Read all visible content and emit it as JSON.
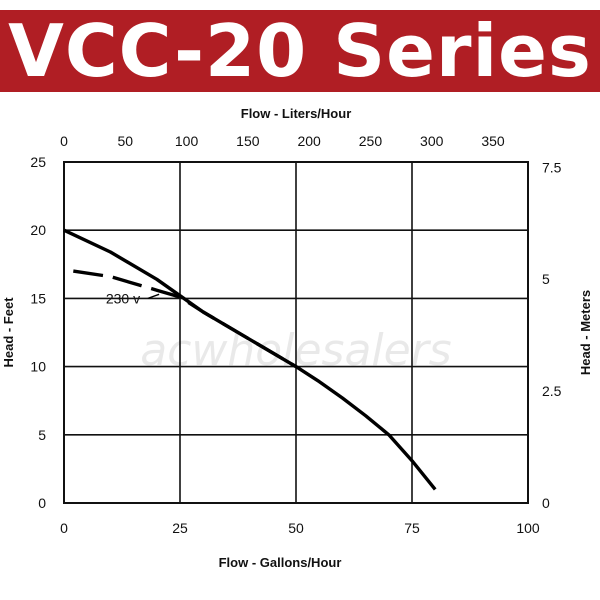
{
  "header": {
    "title": "VCC-20 Series"
  },
  "watermark": "acwholesalers",
  "chart_data": {
    "type": "line",
    "title": "",
    "xlabel": "Flow - Gallons/Hour",
    "ylabel": "Head - Feet",
    "x2label": "Flow - Liters/Hour",
    "y2label": "Head - Meters",
    "xlim": [
      0,
      100
    ],
    "ylim": [
      0,
      25
    ],
    "x2lim": [
      0,
      378.54
    ],
    "y2lim": [
      0,
      7.62
    ],
    "grid": true,
    "x_ticks": [
      "0",
      "25",
      "50",
      "75",
      "100"
    ],
    "y_ticks": [
      "0",
      "5",
      "10",
      "15",
      "20",
      "25"
    ],
    "x2_ticks": [
      "0",
      "50",
      "100",
      "150",
      "200",
      "250",
      "300",
      "350"
    ],
    "y2_ticks": [
      "0",
      "2.5",
      "5",
      "7.5"
    ],
    "series": [
      {
        "style": "solid",
        "x": [
          0,
          10,
          20,
          25,
          30,
          40,
          50,
          55,
          60,
          65,
          70,
          75,
          80
        ],
        "y": [
          20,
          18.4,
          16.4,
          15.2,
          14,
          12,
          10,
          8.9,
          7.7,
          6.4,
          5,
          3.1,
          1
        ]
      },
      {
        "name": "230 v",
        "style": "dashed",
        "x": [
          2,
          10,
          20,
          25,
          30,
          40,
          50
        ],
        "y": [
          17,
          16.6,
          15.6,
          15.1,
          14,
          12,
          10
        ]
      }
    ],
    "annotations": [
      {
        "text": "230 v",
        "x": 6,
        "y": 15
      }
    ]
  }
}
